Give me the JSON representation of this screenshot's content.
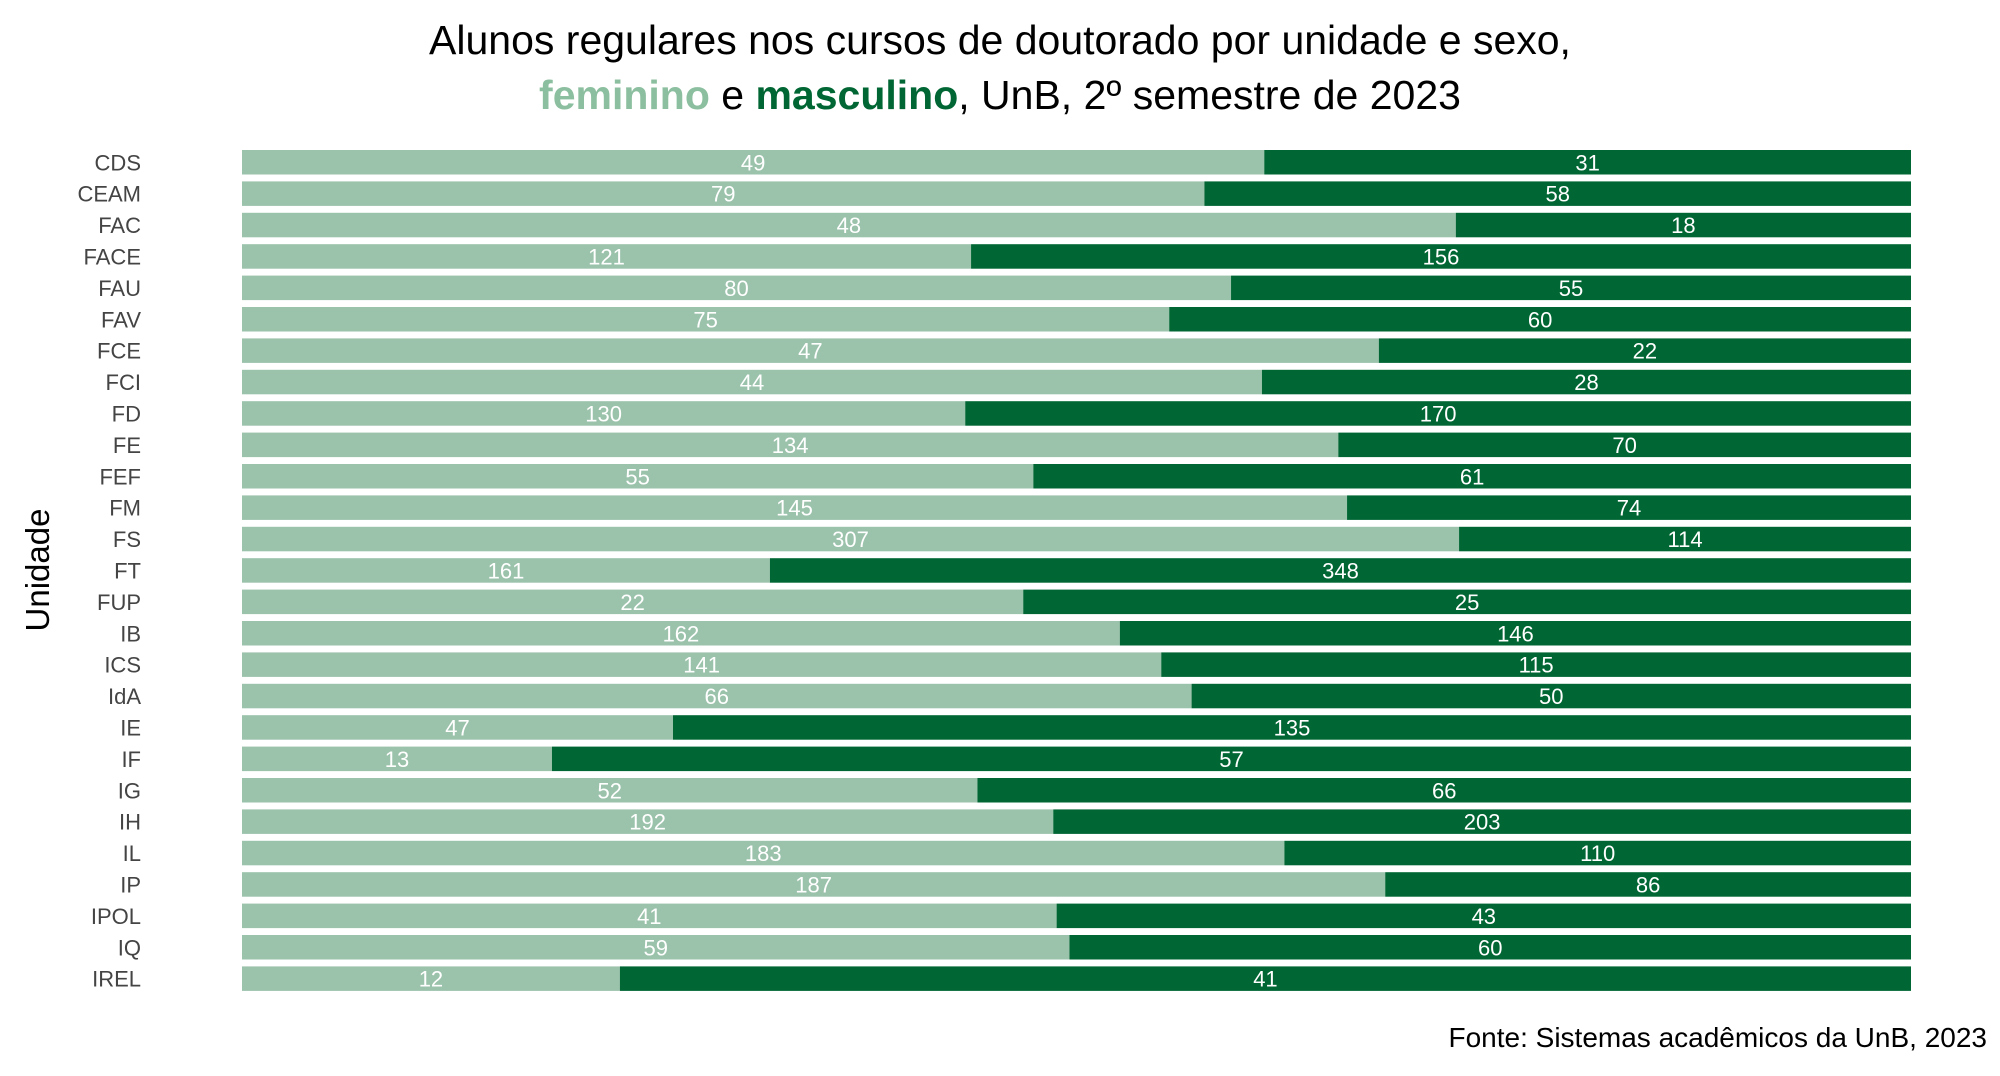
{
  "title": {
    "line1": "Alunos regulares nos cursos de doutorado por unidade e sexo,",
    "line2_fem": "feminino",
    "line2_join": " e ",
    "line2_masc": "masculino",
    "line2_rest": ", UnB, 2º semestre de 2023"
  },
  "source": "Fonte: Sistemas acadêmicos da UnB, 2023",
  "colors": {
    "feminino": "#9bc2ab",
    "masculino": "#006633",
    "label_text": "#ffffff",
    "tick_text": "#444444"
  },
  "chart_data": {
    "type": "bar",
    "orientation": "horizontal",
    "stacked": true,
    "normalized": true,
    "ylabel": "Unidade",
    "xlabel": "",
    "legend": "none",
    "grid": false,
    "categories": [
      "CDS",
      "CEAM",
      "FAC",
      "FACE",
      "FAU",
      "FAV",
      "FCE",
      "FCI",
      "FD",
      "FE",
      "FEF",
      "FM",
      "FS",
      "FT",
      "FUP",
      "IB",
      "ICS",
      "IdA",
      "IE",
      "IF",
      "IG",
      "IH",
      "IL",
      "IP",
      "IPOL",
      "IQ",
      "IREL"
    ],
    "series": [
      {
        "name": "feminino",
        "values": [
          49,
          79,
          48,
          121,
          80,
          75,
          47,
          44,
          130,
          134,
          55,
          145,
          307,
          161,
          22,
          162,
          141,
          66,
          47,
          13,
          52,
          192,
          183,
          187,
          41,
          59,
          12
        ]
      },
      {
        "name": "masculino",
        "values": [
          31,
          58,
          18,
          156,
          55,
          60,
          22,
          28,
          170,
          70,
          61,
          74,
          114,
          348,
          25,
          146,
          115,
          50,
          135,
          57,
          66,
          203,
          110,
          86,
          43,
          60,
          41
        ]
      }
    ]
  }
}
